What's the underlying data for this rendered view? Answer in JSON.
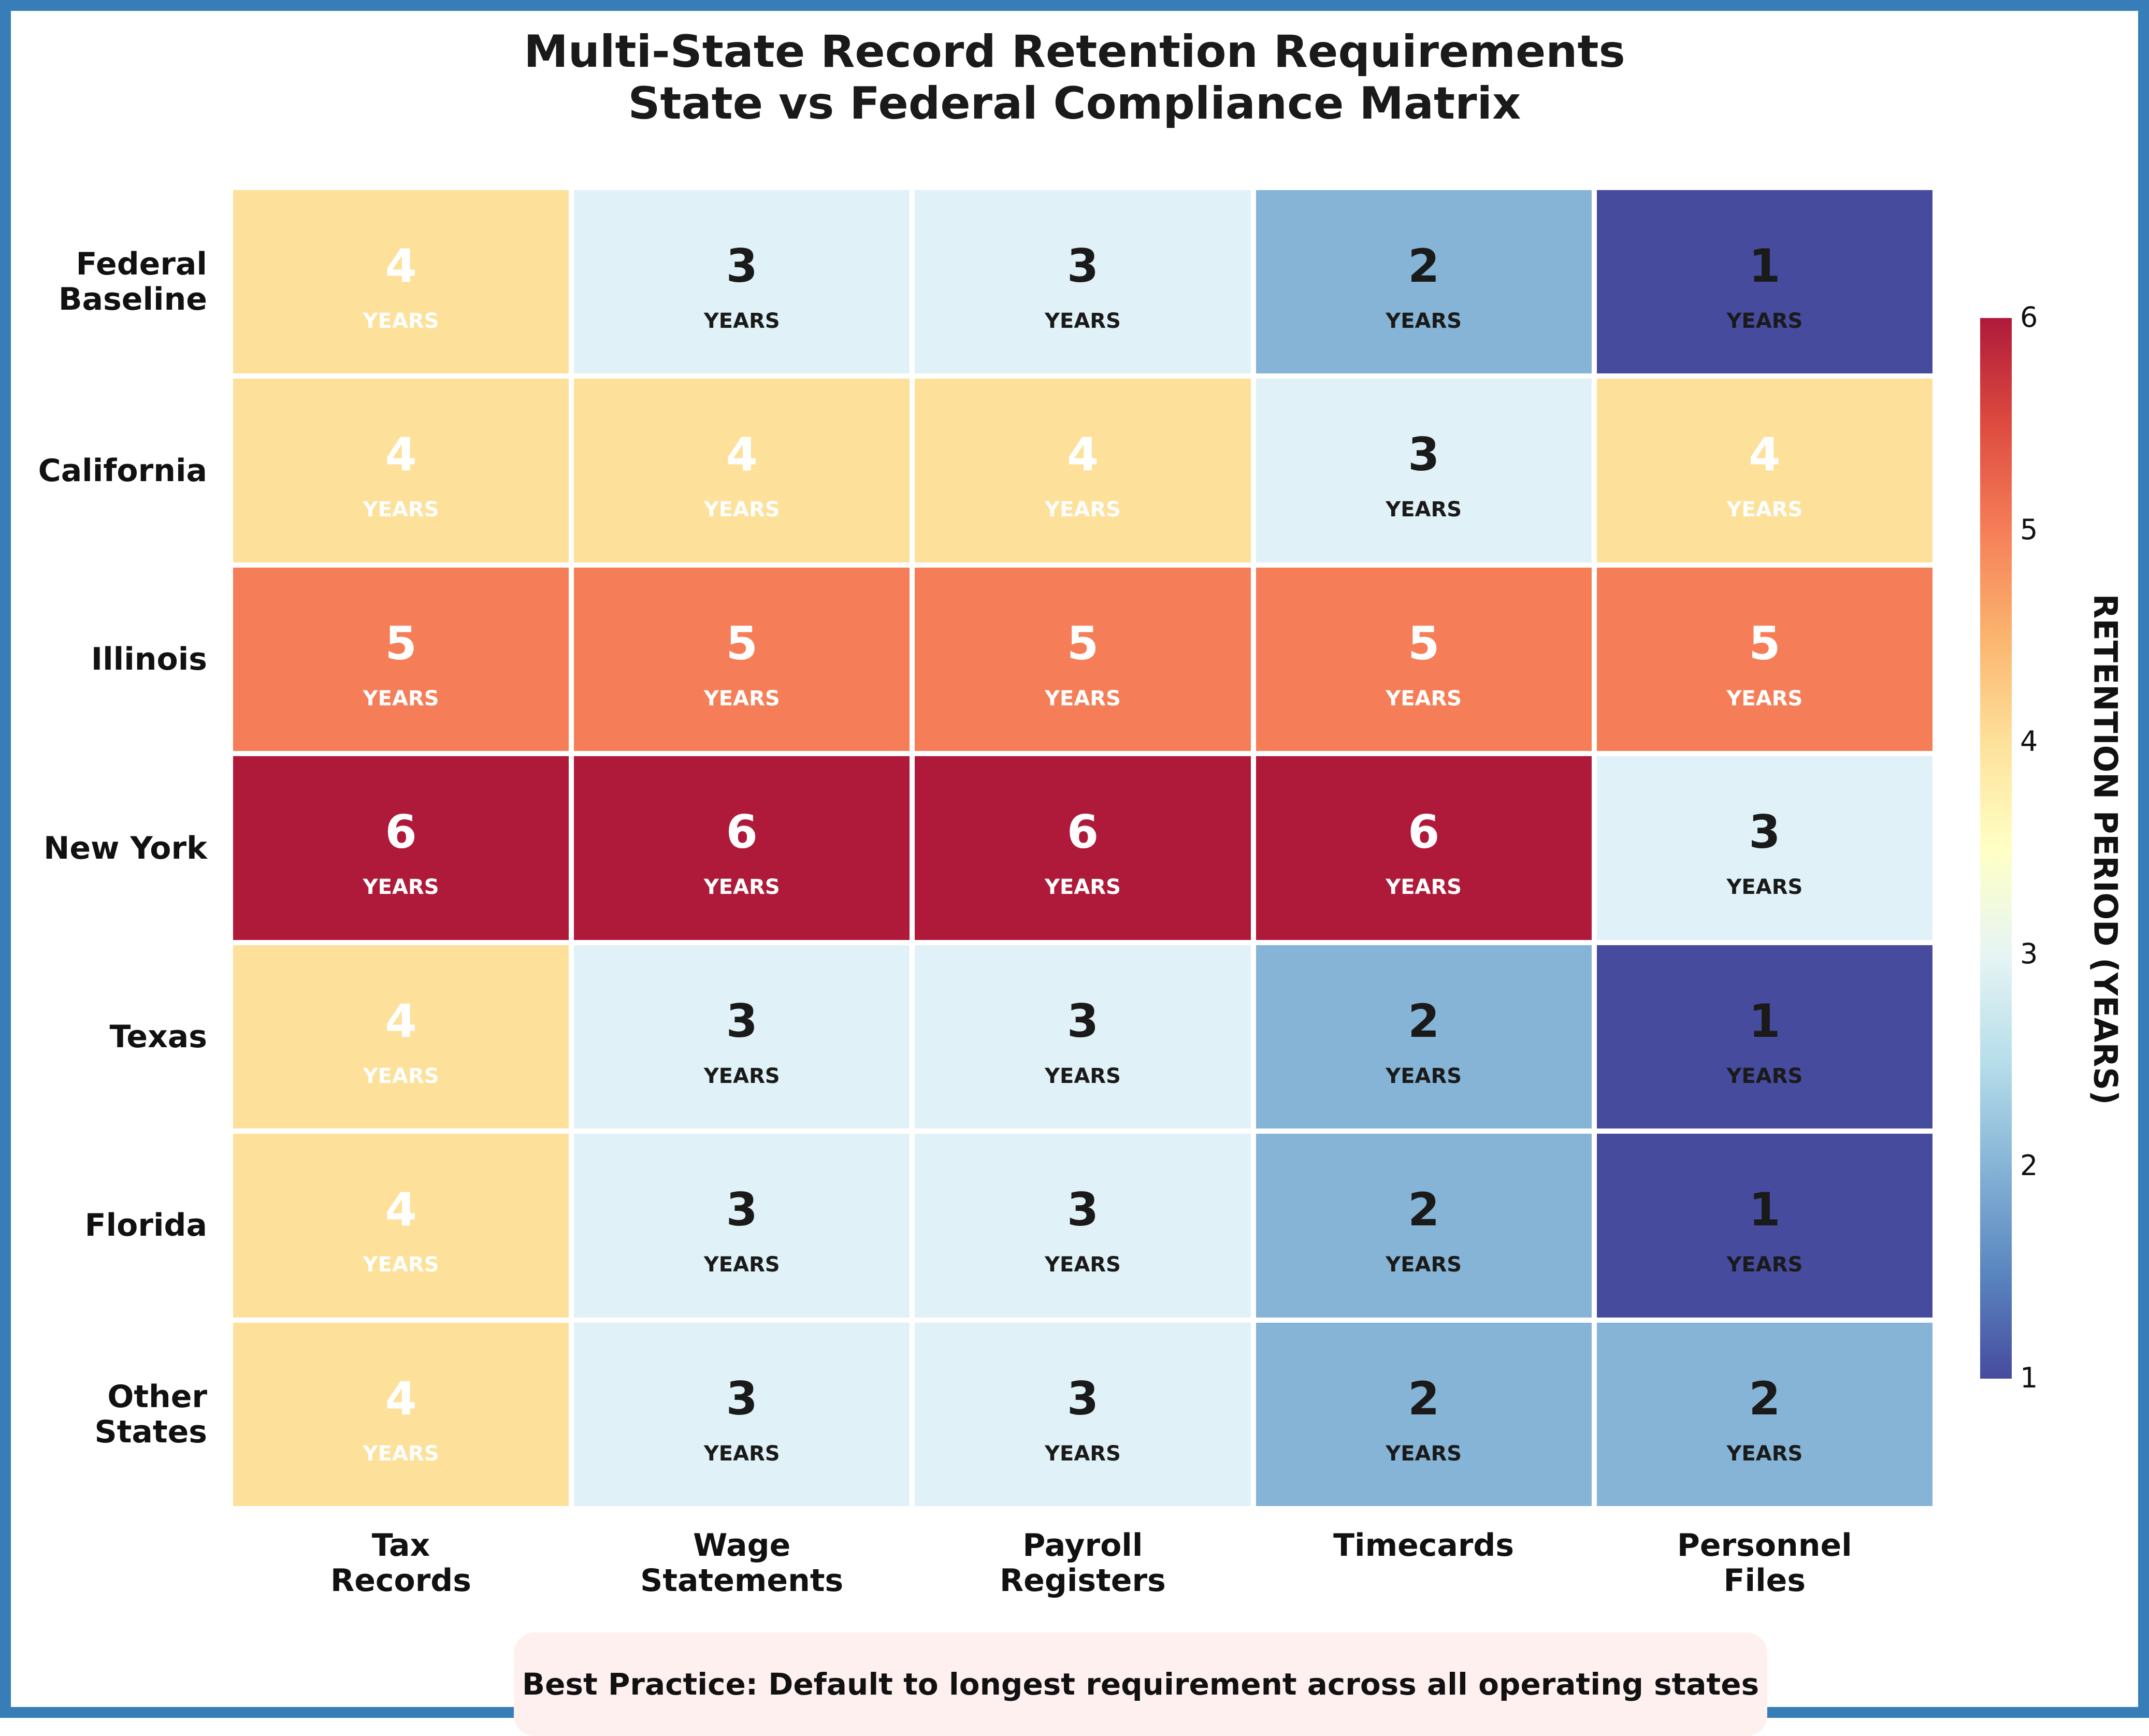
{
  "chart_data": {
    "type": "heatmap",
    "title": [
      "Multi-State Record Retention Requirements",
      "State vs Federal Compliance Matrix"
    ],
    "rows": [
      "Federal\nBaseline",
      "California",
      "Illinois",
      "New York",
      "Texas",
      "Florida",
      "Other\nStates"
    ],
    "columns": [
      "Tax\nRecords",
      "Wage\nStatements",
      "Payroll\nRegisters",
      "Timecards",
      "Personnel\nFiles"
    ],
    "values": [
      [
        4,
        3,
        3,
        2,
        1
      ],
      [
        4,
        4,
        4,
        3,
        4
      ],
      [
        5,
        5,
        5,
        5,
        5
      ],
      [
        6,
        6,
        6,
        6,
        3
      ],
      [
        4,
        3,
        3,
        2,
        1
      ],
      [
        4,
        3,
        3,
        2,
        1
      ],
      [
        4,
        3,
        3,
        2,
        2
      ]
    ],
    "cell_unit_label": "YEARS",
    "colorbar": {
      "label": "RETENTION PERIOD (YEARS)",
      "range": [
        1,
        6
      ],
      "ticks": [
        "1",
        "2",
        "3",
        "4",
        "5",
        "6"
      ],
      "colormap": "RdYlBu_r"
    },
    "colors": {
      "1": "#464b9e",
      "2": "#85b4d6",
      "3": "#e0f2f7",
      "4": "#fde19a",
      "5": "#f57e58",
      "6": "#af1a3a",
      "frame": "#377eb8"
    }
  },
  "note": "Best Practice: Default to longest requirement across all operating states"
}
